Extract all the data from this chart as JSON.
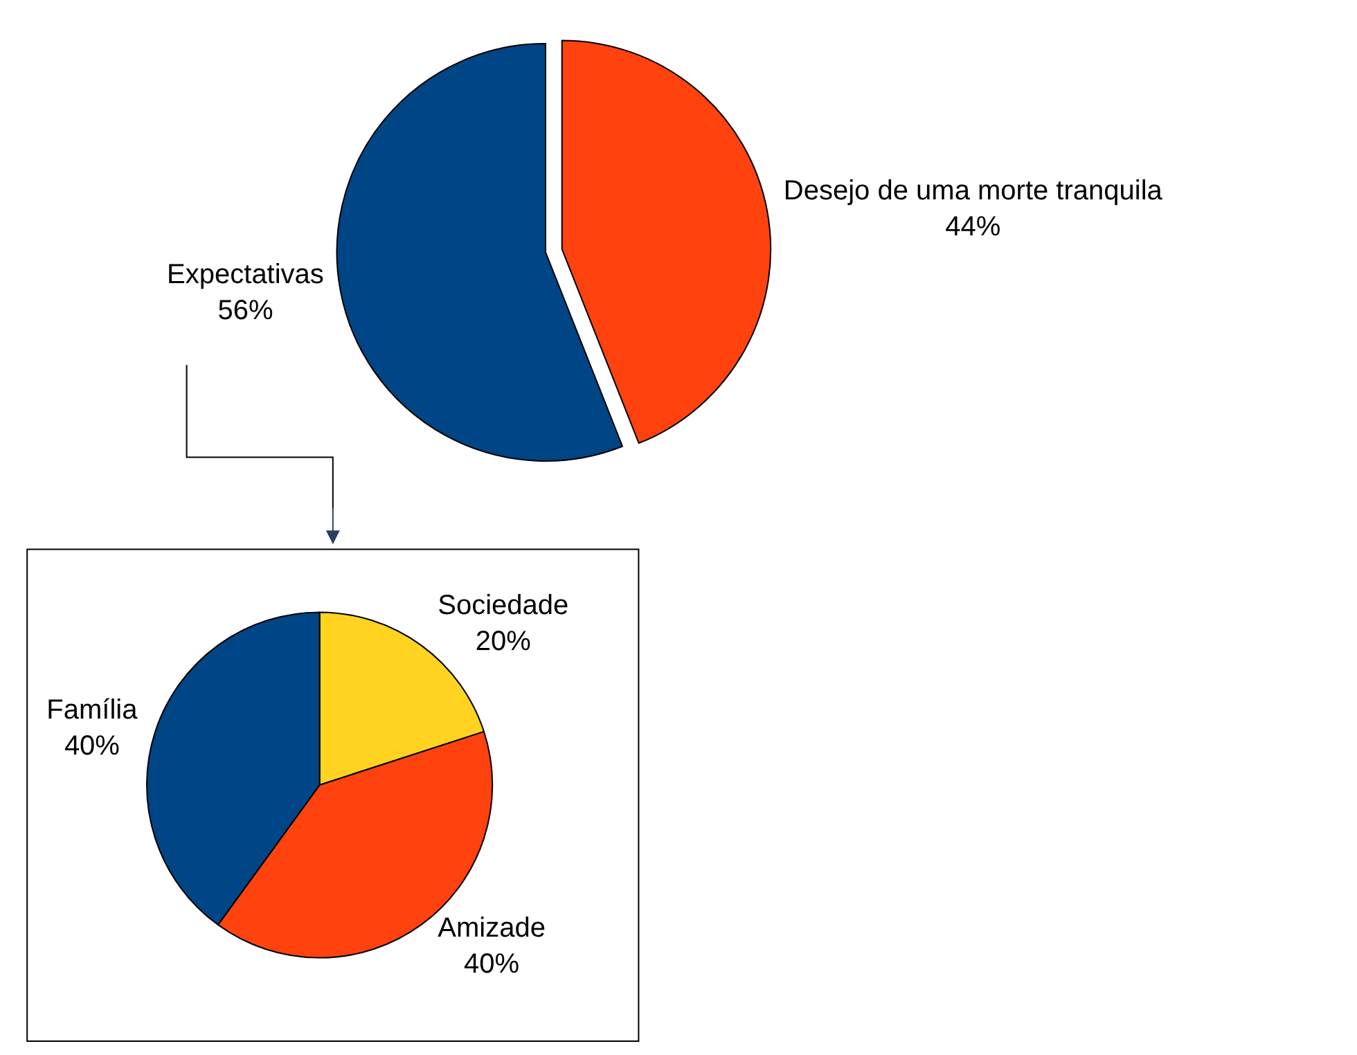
{
  "chart_data": [
    {
      "type": "pie",
      "categories": [
        "Desejo de uma morte tranquila",
        "Expectativas"
      ],
      "values": [
        44,
        56
      ],
      "colors": [
        "#ff420e",
        "#004586"
      ],
      "value_labels": [
        "44%",
        "56%"
      ]
    },
    {
      "type": "pie",
      "categories": [
        "Sociedade",
        "Amizade",
        "Família"
      ],
      "values": [
        20,
        40,
        40
      ],
      "colors": [
        "#ffd320",
        "#ff420e",
        "#004586"
      ],
      "value_labels": [
        "20%",
        "40%",
        "40%"
      ]
    }
  ]
}
